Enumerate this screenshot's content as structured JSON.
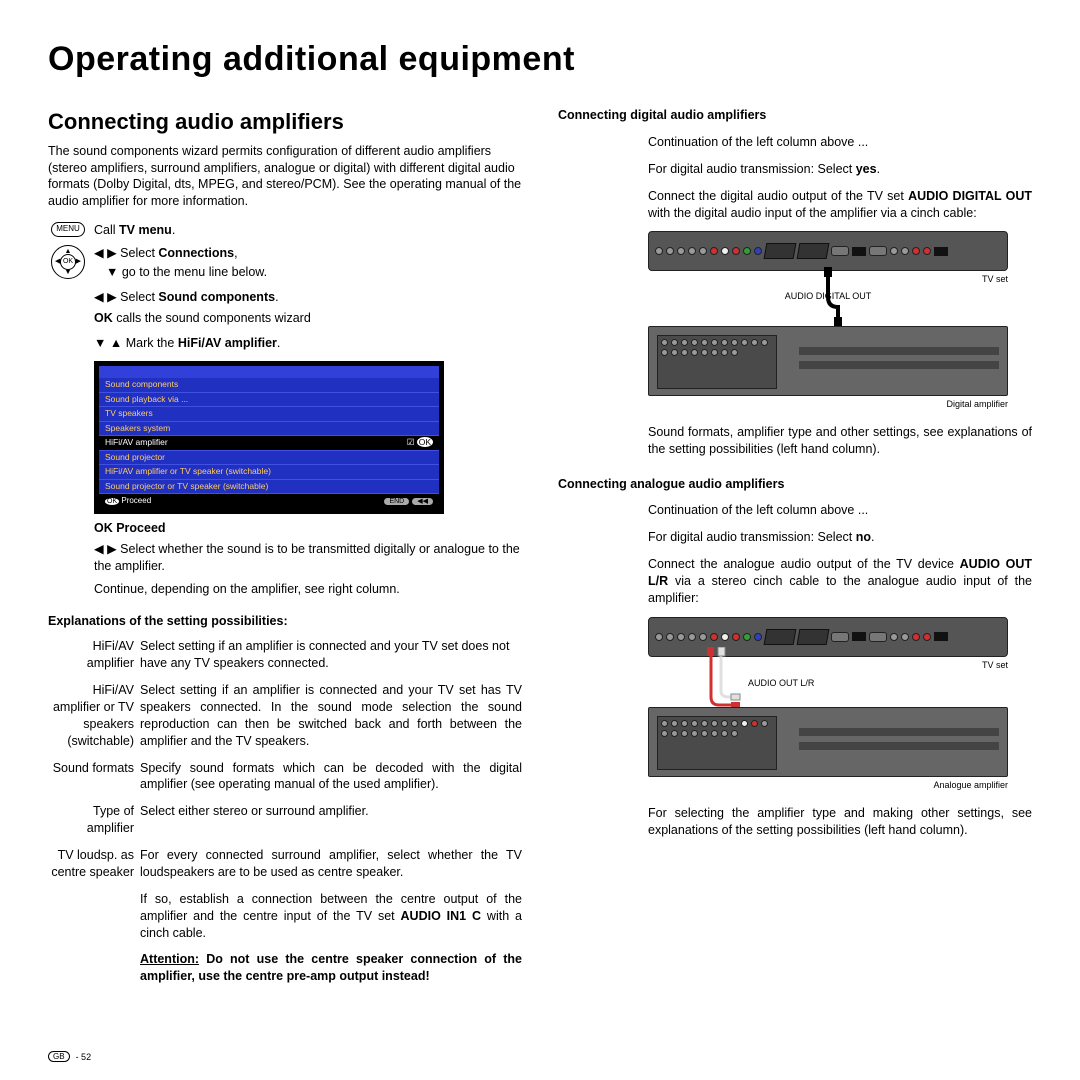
{
  "title": "Operating additional equipment",
  "left": {
    "heading": "Connecting audio amplifiers",
    "intro": "The sound components wizard permits configuration of different audio amplifiers (stereo amplifiers, surround amplifiers, analogue or digital) with different digital audio formats (Dolby Digital, dts, MPEG, and stereo/PCM). See the operating manual of the audio amplifier for more information.",
    "menuLabel": "MENU",
    "okLabel": "OK",
    "step1_pre": "Call ",
    "step1_bold": "TV menu",
    "step2a_pre": "Select ",
    "step2a_bold": "Connections",
    "step2b": "go to the menu line below.",
    "step3_pre": "Select ",
    "step3_bold": "Sound components",
    "step4_bold": "OK",
    "step4_rest": "  calls the sound components wizard",
    "step5_pre": "Mark the ",
    "step5_bold": "HiFi/AV amplifier",
    "menuItems": [
      "Sound components",
      "Sound playback via ...",
      "TV speakers",
      "Speakers system",
      "HiFi/AV amplifier",
      "Sound projector",
      "HiFi/AV amplifier or TV speaker (switchable)",
      "Sound projector or TV speaker (switchable)"
    ],
    "menuSelectedIndex": 4,
    "menuProceed": "Proceed",
    "menuEnd": "END",
    "step6_bold": "OK  Proceed",
    "step7": "Select whether the sound is to be transmitted digitally or analogue to the the amplifier.",
    "step8": "Continue, depending on the amplifier, see right column.",
    "explHead": "Explanations of the setting possibilities:",
    "e1t1": "HiFi/AV",
    "e1t2": "amplifier",
    "e1d": "Select setting if an amplifier is connected and your TV set does not have any TV speakers connected.",
    "e2t1": "HiFi/AV",
    "e2t2": "amplifier or TV",
    "e2t3": "speakers",
    "e2t4": "(switchable)",
    "e2d": "Select setting if an amplifier is connected and your TV set has TV speakers connected. In the sound mode selection the sound reproduction can then be switched back and forth between the amplifier and the TV speakers.",
    "e3t": "Sound formats",
    "e3d": "Specify sound formats which can be decoded with the digital amplifier (see operating manual of the used amplifier).",
    "e4t1": "Type of",
    "e4t2": "amplifier",
    "e4d": "Select either stereo or surround amplifier.",
    "e5t1": "TV loudsp. as",
    "e5t2": "centre speaker",
    "e5d1": "For every connected surround amplifier, select whether the TV loudspeakers are to be used as centre speaker.",
    "e5d2_pre": "If so, establish a connection between the centre output of the amplifier and the centre input of the TV set ",
    "e5d2_bold": "AUDIO IN1 C",
    "e5d2_post": " with a cinch cable.",
    "e5d3_u": "Attention:",
    "e5d3_bold": " Do not use the centre speaker connection of the amplifier, use the centre pre-amp output instead",
    "e5d3_post": "!"
  },
  "right": {
    "h1": "Connecting digital audio amplifiers",
    "p1": "Continuation of the left column above ...",
    "p2_pre": "For digital audio transmission: Select ",
    "p2_bold": "yes",
    "p3_pre": "Connect the digital audio output of the TV set ",
    "p3_bold": "AUDIO DIGITAL OUT",
    "p3_post": " with the digital audio input of the amplifier via a cinch cable:",
    "tvLabel": "TV set",
    "digOutLabel": "AUDIO DIGITAL OUT",
    "digAmpLabel": "Digital amplifier",
    "p4": "Sound formats, amplifier type and other settings, see explanations of the setting possibilities (left hand column).",
    "h2": "Connecting analogue audio amplifiers",
    "p5": "Continuation of the left column above ...",
    "p6_pre": "For digital audio transmission: Select ",
    "p6_bold": "no",
    "p7_pre": "Connect the analogue audio output of the TV device ",
    "p7_bold": "AUDIO OUT L/R",
    "p7_post": " via a stereo cinch cable to the analogue audio input of the amplifier:",
    "anaOutLabel": "AUDIO OUT L/R",
    "anaAmpLabel": "Analogue amplifier",
    "p8": "For selecting the amplifier type and making other settings, see explanations of the setting possibilities (left hand column)."
  },
  "footer": {
    "gb": "GB",
    "page": "- 52"
  }
}
